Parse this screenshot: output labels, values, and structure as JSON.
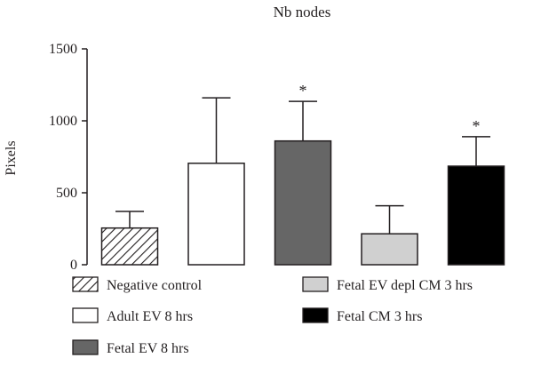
{
  "chart_data": {
    "type": "bar",
    "title": "Nb nodes",
    "ylabel": "Pixels",
    "xlabel": "",
    "ylim": [
      0,
      1500
    ],
    "yticks": [
      0,
      500,
      1000,
      1500
    ],
    "grid": false,
    "legend_position": "bottom",
    "series": [
      {
        "name": "Negative control",
        "value": 255,
        "error": 115,
        "significant": false,
        "fill": "#ffffff",
        "pattern": "hatch"
      },
      {
        "name": "Adult EV 8 hrs",
        "value": 705,
        "error": 455,
        "significant": false,
        "fill": "#ffffff",
        "pattern": "none"
      },
      {
        "name": "Fetal EV 8 hrs",
        "value": 860,
        "error": 275,
        "significant": true,
        "fill": "#666666",
        "pattern": "none"
      },
      {
        "name": "Fetal EV depl CM 3 hrs",
        "value": 215,
        "error": 195,
        "significant": false,
        "fill": "#d0d0d0",
        "pattern": "none"
      },
      {
        "name": "Fetal CM 3 hrs",
        "value": 685,
        "error": 205,
        "significant": true,
        "fill": "#000000",
        "pattern": "none"
      }
    ],
    "significance_marker": "*"
  },
  "colors": {
    "axis": "#231f20",
    "bar_edge": "#231f20"
  }
}
